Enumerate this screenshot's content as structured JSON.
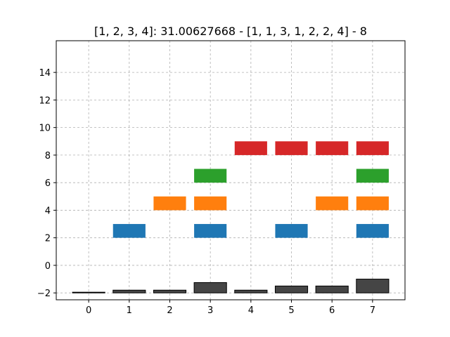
{
  "chart_data": {
    "type": "bar",
    "title": "[1, 2, 3, 4]: 31.00627668 - [1, 1, 3, 1, 2, 2, 4] - 8",
    "xlabel": "",
    "ylabel": "",
    "xlim": [
      -0.8,
      7.8
    ],
    "ylim": [
      -2.5,
      16.3
    ],
    "x_ticks": [
      0,
      1,
      2,
      3,
      4,
      5,
      6,
      7
    ],
    "y_ticks": [
      -2,
      0,
      2,
      4,
      6,
      8,
      10,
      12,
      14
    ],
    "x_tick_labels": [
      "0",
      "1",
      "2",
      "3",
      "4",
      "5",
      "6",
      "7"
    ],
    "y_tick_labels": [
      "−2",
      "0",
      "2",
      "4",
      "6",
      "8",
      "10",
      "12",
      "14"
    ],
    "grid": true,
    "bar_width": 0.8,
    "colors": {
      "blue": "#1f77b4",
      "orange": "#ff7f0e",
      "green": "#2ca02c",
      "red": "#d62728",
      "dark": "#454545"
    },
    "floating_bars": [
      {
        "x": 1,
        "bottom": 2,
        "top": 3,
        "color": "blue"
      },
      {
        "x": 3,
        "bottom": 2,
        "top": 3,
        "color": "blue"
      },
      {
        "x": 5,
        "bottom": 2,
        "top": 3,
        "color": "blue"
      },
      {
        "x": 7,
        "bottom": 2,
        "top": 3,
        "color": "blue"
      },
      {
        "x": 2,
        "bottom": 4,
        "top": 5,
        "color": "orange"
      },
      {
        "x": 3,
        "bottom": 4,
        "top": 5,
        "color": "orange"
      },
      {
        "x": 6,
        "bottom": 4,
        "top": 5,
        "color": "orange"
      },
      {
        "x": 7,
        "bottom": 4,
        "top": 5,
        "color": "orange"
      },
      {
        "x": 3,
        "bottom": 6,
        "top": 7,
        "color": "green"
      },
      {
        "x": 7,
        "bottom": 6,
        "top": 7,
        "color": "green"
      },
      {
        "x": 4,
        "bottom": 8,
        "top": 9,
        "color": "red"
      },
      {
        "x": 5,
        "bottom": 8,
        "top": 9,
        "color": "red"
      },
      {
        "x": 6,
        "bottom": 8,
        "top": 9,
        "color": "red"
      },
      {
        "x": 7,
        "bottom": 8,
        "top": 9,
        "color": "red"
      }
    ],
    "bottom_bars": {
      "baseline": -2,
      "x": [
        0,
        1,
        2,
        3,
        4,
        5,
        6,
        7
      ],
      "values": [
        0.0,
        0.2,
        0.2,
        0.75,
        0.2,
        0.5,
        0.5,
        1.0
      ],
      "color": "dark"
    }
  }
}
